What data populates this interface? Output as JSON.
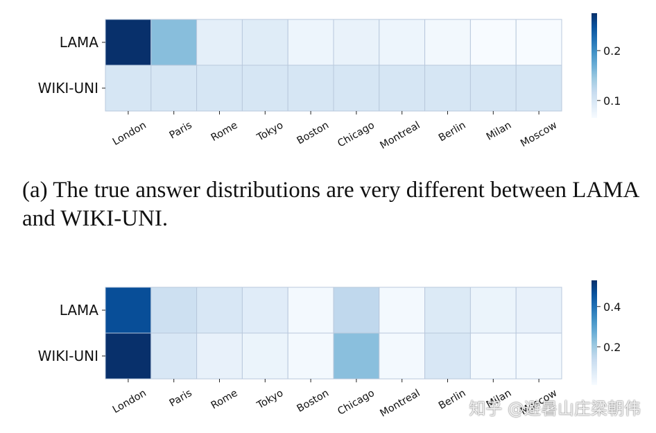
{
  "caption": "(a) The true answer distributions are very different between LAMA and WIKI-UNI.",
  "watermark": "知乎 @避暑山庄梁朝伟",
  "colormap": {
    "low": "#f7fbff",
    "mid": "#6baed6",
    "high": "#08306b"
  },
  "chart_data": [
    {
      "type": "heatmap",
      "rows": [
        "LAMA",
        "WIKI-UNI"
      ],
      "columns": [
        "London",
        "Paris",
        "Rome",
        "Tokyo",
        "Boston",
        "Chicago",
        "Montreal",
        "Berlin",
        "Milan",
        "Moscow"
      ],
      "values": [
        [
          0.275,
          0.155,
          0.085,
          0.09,
          0.075,
          0.08,
          0.075,
          0.07,
          0.065,
          0.065
        ],
        [
          0.1,
          0.1,
          0.1,
          0.1,
          0.1,
          0.1,
          0.1,
          0.1,
          0.1,
          0.1
        ]
      ],
      "vmin": 0.065,
      "vmax": 0.275,
      "colorbar_ticks": [
        0.1,
        0.2
      ],
      "colorbar_tick_labels": [
        "0.1",
        "0.2"
      ]
    },
    {
      "type": "heatmap",
      "rows": [
        "LAMA",
        "WIKI-UNI"
      ],
      "columns": [
        "London",
        "Paris",
        "Rome",
        "Tokyo",
        "Boston",
        "Chicago",
        "Montreal",
        "Berlin",
        "Milan",
        "Moscow"
      ],
      "values": [
        [
          0.47,
          0.12,
          0.09,
          0.07,
          0.02,
          0.15,
          0.02,
          0.08,
          0.04,
          0.05
        ],
        [
          0.53,
          0.09,
          0.05,
          0.04,
          0.02,
          0.23,
          0.02,
          0.09,
          0.02,
          0.02
        ]
      ],
      "vmin": 0.01,
      "vmax": 0.53,
      "colorbar_ticks": [
        0.2,
        0.4
      ],
      "colorbar_tick_labels": [
        "0.2",
        "0.4"
      ]
    }
  ]
}
